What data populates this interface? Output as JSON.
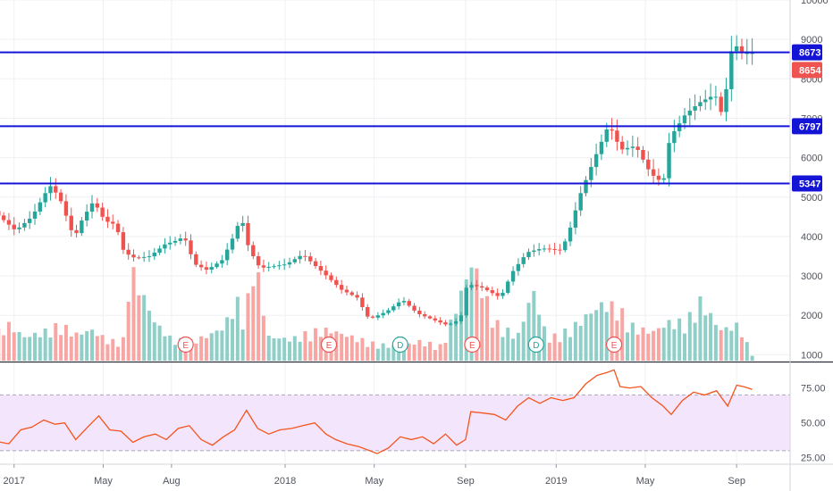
{
  "colors": {
    "up": "#26a69a",
    "down": "#ef5350",
    "vol_up": "#8fcfc8",
    "vol_down": "#f7a6a4",
    "level_line": "#1414d6",
    "rsi_line": "#f4541d",
    "rsi_band": "#f3e5fb",
    "grid": "#eef0f3",
    "axis_text": "#50535e"
  },
  "chart_data": [
    {
      "type": "candlestick",
      "title": "",
      "y_axis": {
        "ticks": [
          1000,
          2000,
          3000,
          4000,
          5000,
          6000,
          7000,
          8000,
          9000,
          10000
        ],
        "labels": [
          "1000",
          "2000",
          "3000",
          "4000",
          "5000",
          "6000",
          "7000",
          "8000",
          "9000",
          "10000"
        ],
        "ylim": [
          850,
          10000
        ]
      },
      "x_axis": {
        "labels": [
          "2017",
          "May",
          "Aug",
          "2018",
          "May",
          "Sep",
          "2019",
          "May",
          "Sep"
        ],
        "dates": [
          "2017-01-01",
          "2017-05-01",
          "2017-08-01",
          "2018-01-01",
          "2018-05-01",
          "2018-09-01",
          "2019-01-01",
          "2019-05-01",
          "2019-09-01"
        ],
        "range": [
          "2016-12-01",
          "2019-10-31"
        ]
      },
      "horizontal_levels": [
        {
          "label": "8673",
          "value": 8673
        },
        {
          "label": "6797",
          "value": 6797
        },
        {
          "label": "5347",
          "value": 5347
        }
      ],
      "last_price": {
        "label": "8654",
        "value": 8654
      },
      "close_series": [
        {
          "date": "2016-12-05",
          "close": 4750
        },
        {
          "date": "2017-01-10",
          "close": 4150
        },
        {
          "date": "2017-02-01",
          "close": 4500
        },
        {
          "date": "2017-02-25",
          "close": 5300
        },
        {
          "date": "2017-03-10",
          "close": 5000
        },
        {
          "date": "2017-03-30",
          "close": 3950
        },
        {
          "date": "2017-04-10",
          "close": 4450
        },
        {
          "date": "2017-04-25",
          "close": 4900
        },
        {
          "date": "2017-05-10",
          "close": 4400
        },
        {
          "date": "2017-05-25",
          "close": 4300
        },
        {
          "date": "2017-06-05",
          "close": 3600
        },
        {
          "date": "2017-06-20",
          "close": 3450
        },
        {
          "date": "2017-07-10",
          "close": 3500
        },
        {
          "date": "2017-07-30",
          "close": 3800
        },
        {
          "date": "2017-08-15",
          "close": 3900
        },
        {
          "date": "2017-08-25",
          "close": 4000
        },
        {
          "date": "2017-09-08",
          "close": 3300
        },
        {
          "date": "2017-09-25",
          "close": 3150
        },
        {
          "date": "2017-10-15",
          "close": 3400
        },
        {
          "date": "2017-10-28",
          "close": 3900
        },
        {
          "date": "2017-11-10",
          "close": 4500
        },
        {
          "date": "2017-11-20",
          "close": 3700
        },
        {
          "date": "2017-12-05",
          "close": 3200
        },
        {
          "date": "2017-12-25",
          "close": 3250
        },
        {
          "date": "2018-01-10",
          "close": 3300
        },
        {
          "date": "2018-02-01",
          "close": 3550
        },
        {
          "date": "2018-02-15",
          "close": 3300
        },
        {
          "date": "2018-03-05",
          "close": 3000
        },
        {
          "date": "2018-03-25",
          "close": 2650
        },
        {
          "date": "2018-04-15",
          "close": 2450
        },
        {
          "date": "2018-05-01",
          "close": 1900
        },
        {
          "date": "2018-05-25",
          "close": 2100
        },
        {
          "date": "2018-06-15",
          "close": 2400
        },
        {
          "date": "2018-07-05",
          "close": 2050
        },
        {
          "date": "2018-07-25",
          "close": 1900
        },
        {
          "date": "2018-08-15",
          "close": 1750
        },
        {
          "date": "2018-09-01",
          "close": 1900
        },
        {
          "date": "2018-09-10",
          "close": 2800
        },
        {
          "date": "2018-10-01",
          "close": 2700
        },
        {
          "date": "2018-10-25",
          "close": 2450
        },
        {
          "date": "2018-11-10",
          "close": 3100
        },
        {
          "date": "2018-11-30",
          "close": 3600
        },
        {
          "date": "2018-12-20",
          "close": 3700
        },
        {
          "date": "2019-01-15",
          "close": 3650
        },
        {
          "date": "2019-01-25",
          "close": 4100
        },
        {
          "date": "2019-02-10",
          "close": 5100
        },
        {
          "date": "2019-03-01",
          "close": 6000
        },
        {
          "date": "2019-03-20",
          "close": 6850
        },
        {
          "date": "2019-04-05",
          "close": 6200
        },
        {
          "date": "2019-04-25",
          "close": 6300
        },
        {
          "date": "2019-05-15",
          "close": 5600
        },
        {
          "date": "2019-06-01",
          "close": 5350
        },
        {
          "date": "2019-06-10",
          "close": 6500
        },
        {
          "date": "2019-07-01",
          "close": 7100
        },
        {
          "date": "2019-07-20",
          "close": 7400
        },
        {
          "date": "2019-08-10",
          "close": 7600
        },
        {
          "date": "2019-08-20",
          "close": 7050
        },
        {
          "date": "2019-09-01",
          "close": 8700
        },
        {
          "date": "2019-09-05",
          "close": 8900
        },
        {
          "date": "2019-09-15",
          "close": 8650
        },
        {
          "date": "2019-09-22",
          "close": 8654
        }
      ],
      "volume_series": [
        {
          "date": "2016-12-05",
          "volume": 1.1
        },
        {
          "date": "2016-12-25",
          "volume": 1.5
        },
        {
          "date": "2017-01-15",
          "volume": 1.0
        },
        {
          "date": "2017-02-10",
          "volume": 1.2
        },
        {
          "date": "2017-03-05",
          "volume": 1.5
        },
        {
          "date": "2017-03-25",
          "volume": 1.1
        },
        {
          "date": "2017-04-15",
          "volume": 1.3
        },
        {
          "date": "2017-05-10",
          "volume": 0.8
        },
        {
          "date": "2017-06-01",
          "volume": 0.9
        },
        {
          "date": "2017-06-05",
          "volume": 4.0
        },
        {
          "date": "2017-06-20",
          "volume": 3.0
        },
        {
          "date": "2017-07-10",
          "volume": 1.6
        },
        {
          "date": "2017-08-01",
          "volume": 0.9
        },
        {
          "date": "2017-08-25",
          "volume": 0.8
        },
        {
          "date": "2017-09-15",
          "volume": 1.0
        },
        {
          "date": "2017-10-10",
          "volume": 1.4
        },
        {
          "date": "2017-10-28",
          "volume": 2.5
        },
        {
          "date": "2017-11-08",
          "volume": 1.6
        },
        {
          "date": "2017-11-20",
          "volume": 4.4
        },
        {
          "date": "2017-12-10",
          "volume": 1.0
        },
        {
          "date": "2018-01-10",
          "volume": 0.9
        },
        {
          "date": "2018-02-05",
          "volume": 1.2
        },
        {
          "date": "2018-03-01",
          "volume": 1.3
        },
        {
          "date": "2018-04-01",
          "volume": 1.0
        },
        {
          "date": "2018-05-01",
          "volume": 0.7
        },
        {
          "date": "2018-06-01",
          "volume": 0.6
        },
        {
          "date": "2018-07-01",
          "volume": 0.8
        },
        {
          "date": "2018-08-01",
          "volume": 0.6
        },
        {
          "date": "2018-09-10",
          "volume": 4.2
        },
        {
          "date": "2018-10-10",
          "volume": 1.6
        },
        {
          "date": "2018-11-10",
          "volume": 1.0
        },
        {
          "date": "2018-12-01",
          "volume": 3.0
        },
        {
          "date": "2018-12-20",
          "volume": 0.9
        },
        {
          "date": "2019-01-20",
          "volume": 1.3
        },
        {
          "date": "2019-02-15",
          "volume": 2.0
        },
        {
          "date": "2019-03-05",
          "volume": 2.4
        },
        {
          "date": "2019-03-25",
          "volume": 2.2
        },
        {
          "date": "2019-04-15",
          "volume": 1.4
        },
        {
          "date": "2019-05-10",
          "volume": 1.2
        },
        {
          "date": "2019-06-01",
          "volume": 1.6
        },
        {
          "date": "2019-06-25",
          "volume": 1.6
        },
        {
          "date": "2019-07-15",
          "volume": 2.5
        },
        {
          "date": "2019-08-10",
          "volume": 1.3
        },
        {
          "date": "2019-09-05",
          "volume": 1.5
        },
        {
          "date": "2019-09-20",
          "volume": 0.3
        }
      ],
      "events": [
        {
          "label": "E",
          "date": "2017-08-20"
        },
        {
          "label": "E",
          "date": "2018-03-01"
        },
        {
          "label": "D",
          "date": "2018-06-05"
        },
        {
          "label": "E",
          "date": "2018-09-10"
        },
        {
          "label": "D",
          "date": "2018-12-05"
        },
        {
          "label": "E",
          "date": "2019-03-20"
        }
      ]
    },
    {
      "type": "line",
      "title": "",
      "y_axis": {
        "ticks": [
          25,
          50,
          75
        ],
        "labels": [
          "25.00",
          "50.00",
          "75.00"
        ],
        "ylim": [
          21,
          92
        ]
      },
      "bands": {
        "upper": 70,
        "lower": 30
      },
      "series": [
        {
          "points": [
            {
              "date": "2016-12-05",
              "value": 37
            },
            {
              "date": "2016-12-25",
              "value": 35
            },
            {
              "date": "2017-01-10",
              "value": 45
            },
            {
              "date": "2017-01-25",
              "value": 47
            },
            {
              "date": "2017-02-10",
              "value": 52
            },
            {
              "date": "2017-02-25",
              "value": 49
            },
            {
              "date": "2017-03-10",
              "value": 50
            },
            {
              "date": "2017-03-25",
              "value": 38
            },
            {
              "date": "2017-04-10",
              "value": 47
            },
            {
              "date": "2017-04-25",
              "value": 55
            },
            {
              "date": "2017-05-10",
              "value": 45
            },
            {
              "date": "2017-05-25",
              "value": 44
            },
            {
              "date": "2017-06-10",
              "value": 36
            },
            {
              "date": "2017-06-25",
              "value": 40
            },
            {
              "date": "2017-07-10",
              "value": 42
            },
            {
              "date": "2017-07-25",
              "value": 38
            },
            {
              "date": "2017-08-10",
              "value": 46
            },
            {
              "date": "2017-08-25",
              "value": 48
            },
            {
              "date": "2017-09-10",
              "value": 38
            },
            {
              "date": "2017-09-25",
              "value": 34
            },
            {
              "date": "2017-10-10",
              "value": 40
            },
            {
              "date": "2017-10-25",
              "value": 45
            },
            {
              "date": "2017-11-10",
              "value": 59
            },
            {
              "date": "2017-11-25",
              "value": 46
            },
            {
              "date": "2017-12-10",
              "value": 42
            },
            {
              "date": "2017-12-25",
              "value": 45
            },
            {
              "date": "2018-01-10",
              "value": 46
            },
            {
              "date": "2018-01-25",
              "value": 48
            },
            {
              "date": "2018-02-10",
              "value": 50
            },
            {
              "date": "2018-02-25",
              "value": 42
            },
            {
              "date": "2018-03-10",
              "value": 38
            },
            {
              "date": "2018-03-25",
              "value": 35
            },
            {
              "date": "2018-04-10",
              "value": 33
            },
            {
              "date": "2018-04-25",
              "value": 30
            },
            {
              "date": "2018-05-05",
              "value": 28
            },
            {
              "date": "2018-05-20",
              "value": 32
            },
            {
              "date": "2018-06-05",
              "value": 40
            },
            {
              "date": "2018-06-20",
              "value": 38
            },
            {
              "date": "2018-07-05",
              "value": 40
            },
            {
              "date": "2018-07-20",
              "value": 35
            },
            {
              "date": "2018-08-05",
              "value": 42
            },
            {
              "date": "2018-08-20",
              "value": 34
            },
            {
              "date": "2018-09-01",
              "value": 38
            },
            {
              "date": "2018-09-08",
              "value": 58
            },
            {
              "date": "2018-09-25",
              "value": 57
            },
            {
              "date": "2018-10-10",
              "value": 56
            },
            {
              "date": "2018-10-25",
              "value": 52
            },
            {
              "date": "2018-11-10",
              "value": 62
            },
            {
              "date": "2018-11-25",
              "value": 68
            },
            {
              "date": "2018-12-10",
              "value": 64
            },
            {
              "date": "2018-12-25",
              "value": 68
            },
            {
              "date": "2019-01-10",
              "value": 66
            },
            {
              "date": "2019-01-25",
              "value": 68
            },
            {
              "date": "2019-02-10",
              "value": 78
            },
            {
              "date": "2019-02-25",
              "value": 84
            },
            {
              "date": "2019-03-10",
              "value": 86
            },
            {
              "date": "2019-03-20",
              "value": 88
            },
            {
              "date": "2019-03-28",
              "value": 76
            },
            {
              "date": "2019-04-10",
              "value": 75
            },
            {
              "date": "2019-04-25",
              "value": 76
            },
            {
              "date": "2019-05-10",
              "value": 68
            },
            {
              "date": "2019-05-25",
              "value": 62
            },
            {
              "date": "2019-06-05",
              "value": 56
            },
            {
              "date": "2019-06-20",
              "value": 66
            },
            {
              "date": "2019-07-05",
              "value": 72
            },
            {
              "date": "2019-07-20",
              "value": 70
            },
            {
              "date": "2019-08-05",
              "value": 73
            },
            {
              "date": "2019-08-20",
              "value": 62
            },
            {
              "date": "2019-09-01",
              "value": 77
            },
            {
              "date": "2019-09-10",
              "value": 76
            },
            {
              "date": "2019-09-22",
              "value": 74
            }
          ]
        }
      ]
    }
  ]
}
